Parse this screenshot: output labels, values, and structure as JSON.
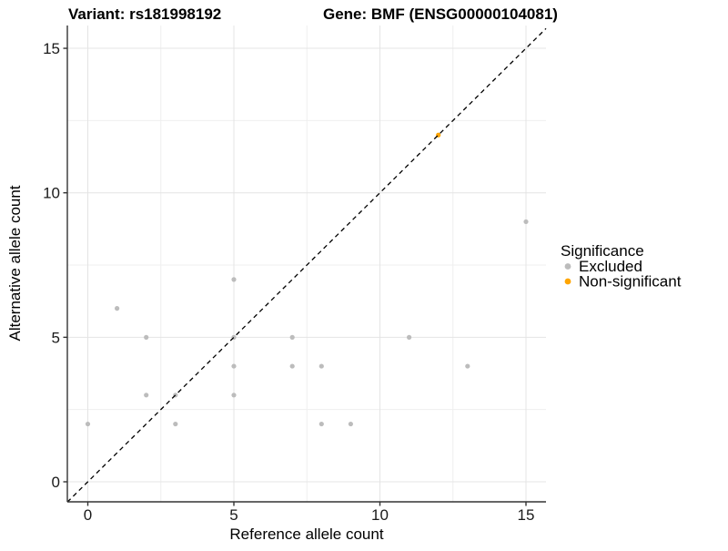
{
  "header": {
    "variant_title": "Variant: rs181998192",
    "gene_title": "Gene: BMF (ENSG00000104081)"
  },
  "legend": {
    "title": "Significance",
    "items": [
      {
        "label": "Excluded",
        "color": "#bcbcbc"
      },
      {
        "label": "Non-significant",
        "color": "#ffa500"
      }
    ]
  },
  "chart_data": {
    "type": "scatter",
    "title": "Variant: rs181998192   Gene: BMF (ENSG00000104081)",
    "xlabel": "Reference allele count",
    "ylabel": "Alternative allele count",
    "xlim": [
      0,
      15
    ],
    "ylim": [
      0,
      15
    ],
    "x_major_ticks": [
      0,
      5,
      10,
      15
    ],
    "x_minor_ticks": [
      2.5,
      7.5,
      12.5
    ],
    "y_major_ticks": [
      0,
      5,
      10,
      15
    ],
    "y_minor_ticks": [
      2.5,
      7.5,
      12.5
    ],
    "grid": true,
    "legend_position": "right",
    "reference_line": {
      "type": "identity",
      "slope": 1,
      "intercept": 0,
      "style": "dashed",
      "color": "#000000"
    },
    "series": [
      {
        "name": "Excluded",
        "color": "#bcbcbc",
        "points": [
          [
            0,
            2
          ],
          [
            1,
            6
          ],
          [
            2,
            3
          ],
          [
            2,
            5
          ],
          [
            3,
            2
          ],
          [
            3,
            3
          ],
          [
            5,
            3
          ],
          [
            5,
            4
          ],
          [
            5,
            5
          ],
          [
            5,
            7
          ],
          [
            7,
            4
          ],
          [
            7,
            5
          ],
          [
            8,
            2
          ],
          [
            8,
            4
          ],
          [
            9,
            2
          ],
          [
            11,
            5
          ],
          [
            13,
            4
          ],
          [
            15,
            9
          ]
        ]
      },
      {
        "name": "Non-significant",
        "color": "#ffa500",
        "points": [
          [
            12,
            12
          ]
        ]
      }
    ]
  },
  "colors": {
    "background": "#ffffff",
    "grid_major": "#e4e4e4",
    "grid_minor": "#efefef",
    "axis_line": "#333333",
    "point_excluded": "#bcbcbc",
    "point_non_significant": "#ffa500"
  }
}
